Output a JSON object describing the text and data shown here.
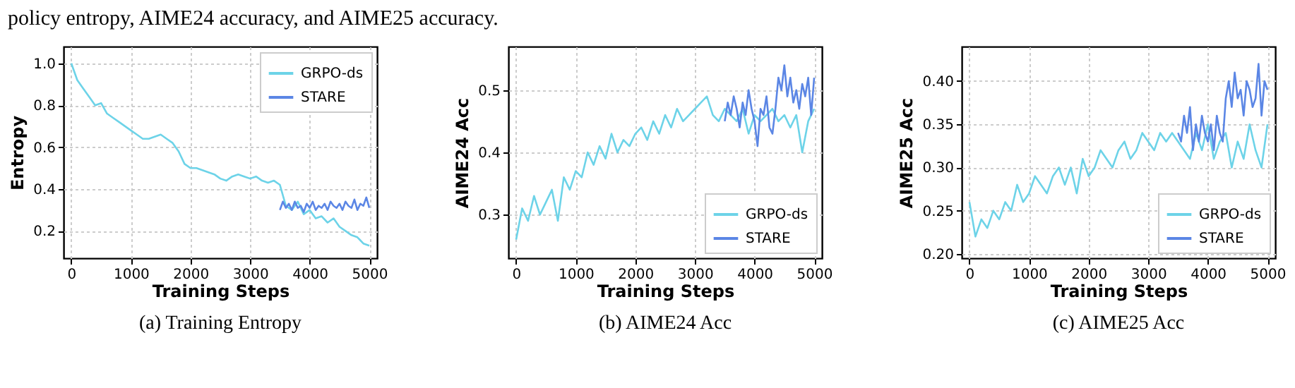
{
  "chart_data": [
    {
      "type": "line",
      "title": "(a) Training Entropy",
      "annotations": [
        "policy entropy, AIME24 accuracy, and AIME25 accuracy."
      ],
      "xlabel": "Training Steps",
      "ylabel": "Entropy",
      "xlim": [
        -130,
        5130
      ],
      "xticks": [
        0,
        1000,
        2000,
        3000,
        4000,
        5000
      ],
      "ylim": [
        0.07,
        1.08
      ],
      "yticks": [
        0.2,
        0.4,
        0.6,
        0.8,
        {
          "value": 1,
          "label": "1.0"
        }
      ],
      "grid": true,
      "legend": "top right",
      "marker": "none",
      "line_style": "solid",
      "series": [
        {
          "name": "GRPO-ds",
          "color": "#6dd3e8",
          "x": [
            0,
            100,
            200,
            300,
            400,
            500,
            600,
            700,
            800,
            900,
            1000,
            1100,
            1200,
            1300,
            1400,
            1500,
            1600,
            1700,
            1800,
            1900,
            2000,
            2100,
            2200,
            2300,
            2400,
            2500,
            2600,
            2700,
            2800,
            2900,
            3000,
            3100,
            3200,
            3300,
            3400,
            3500,
            3600,
            3700,
            3800,
            3900,
            4000,
            4100,
            4200,
            4300,
            4400,
            4500,
            4600,
            4700,
            4800,
            4900,
            5000
          ],
          "values": [
            1.0,
            0.92,
            0.88,
            0.84,
            0.8,
            0.81,
            0.76,
            0.74,
            0.72,
            0.7,
            0.68,
            0.66,
            0.64,
            0.64,
            0.65,
            0.66,
            0.64,
            0.62,
            0.58,
            0.52,
            0.5,
            0.5,
            0.49,
            0.48,
            0.47,
            0.45,
            0.44,
            0.46,
            0.47,
            0.46,
            0.45,
            0.46,
            0.44,
            0.43,
            0.44,
            0.42,
            0.32,
            0.3,
            0.34,
            0.28,
            0.3,
            0.26,
            0.27,
            0.24,
            0.26,
            0.22,
            0.2,
            0.18,
            0.17,
            0.14,
            0.13
          ]
        },
        {
          "name": "STARE",
          "color": "#5b86e5",
          "x": [
            3500,
            3550,
            3600,
            3650,
            3700,
            3750,
            3800,
            3850,
            3900,
            3950,
            4000,
            4050,
            4100,
            4150,
            4200,
            4250,
            4300,
            4350,
            4400,
            4450,
            4500,
            4550,
            4600,
            4650,
            4700,
            4750,
            4800,
            4850,
            4900,
            4950,
            5000
          ],
          "values": [
            0.3,
            0.34,
            0.31,
            0.33,
            0.3,
            0.34,
            0.31,
            0.32,
            0.29,
            0.33,
            0.31,
            0.34,
            0.3,
            0.32,
            0.31,
            0.33,
            0.3,
            0.34,
            0.32,
            0.31,
            0.33,
            0.3,
            0.34,
            0.32,
            0.31,
            0.35,
            0.3,
            0.33,
            0.32,
            0.36,
            0.31
          ]
        }
      ]
    },
    {
      "type": "line",
      "title": "(b) AIME24 Acc",
      "xlabel": "Training Steps",
      "ylabel": "AIME24 Acc",
      "xlim": [
        -130,
        5130
      ],
      "xticks": [
        0,
        1000,
        2000,
        3000,
        4000,
        5000
      ],
      "ylim": [
        0.23,
        0.57
      ],
      "yticks": [
        0.3,
        0.4,
        0.5
      ],
      "grid": true,
      "legend": "bottom right",
      "marker": "none",
      "line_style": "solid",
      "series": [
        {
          "name": "GRPO-ds",
          "color": "#6dd3e8",
          "x": [
            0,
            100,
            200,
            300,
            400,
            500,
            600,
            700,
            800,
            900,
            1000,
            1100,
            1200,
            1300,
            1400,
            1500,
            1600,
            1700,
            1800,
            1900,
            2000,
            2100,
            2200,
            2300,
            2400,
            2500,
            2600,
            2700,
            2800,
            2900,
            3000,
            3100,
            3200,
            3300,
            3400,
            3500,
            3600,
            3700,
            3800,
            3900,
            4000,
            4100,
            4200,
            4300,
            4400,
            4500,
            4600,
            4700,
            4800,
            4900,
            5000
          ],
          "values": [
            0.26,
            0.31,
            0.29,
            0.33,
            0.3,
            0.32,
            0.34,
            0.29,
            0.36,
            0.34,
            0.37,
            0.36,
            0.4,
            0.38,
            0.41,
            0.39,
            0.43,
            0.4,
            0.42,
            0.41,
            0.43,
            0.44,
            0.42,
            0.45,
            0.43,
            0.46,
            0.44,
            0.47,
            0.45,
            0.46,
            0.47,
            0.48,
            0.49,
            0.46,
            0.45,
            0.47,
            0.46,
            0.45,
            0.47,
            0.43,
            0.46,
            0.45,
            0.46,
            0.47,
            0.45,
            0.46,
            0.44,
            0.46,
            0.4,
            0.45,
            0.47
          ]
        },
        {
          "name": "STARE",
          "color": "#5b86e5",
          "x": [
            3500,
            3550,
            3600,
            3650,
            3700,
            3750,
            3800,
            3850,
            3900,
            3950,
            4000,
            4050,
            4100,
            4150,
            4200,
            4250,
            4300,
            4350,
            4400,
            4450,
            4500,
            4550,
            4600,
            4650,
            4700,
            4750,
            4800,
            4850,
            4900,
            4950,
            5000
          ],
          "values": [
            0.45,
            0.48,
            0.46,
            0.49,
            0.47,
            0.44,
            0.48,
            0.46,
            0.5,
            0.47,
            0.45,
            0.41,
            0.47,
            0.46,
            0.49,
            0.44,
            0.43,
            0.47,
            0.52,
            0.5,
            0.54,
            0.49,
            0.52,
            0.48,
            0.5,
            0.47,
            0.51,
            0.49,
            0.52,
            0.46,
            0.52
          ]
        }
      ]
    },
    {
      "type": "line",
      "title": "(c) AIME25 Acc",
      "xlabel": "Training Steps",
      "ylabel": "AIME25 Acc",
      "xlim": [
        -130,
        5130
      ],
      "xticks": [
        0,
        1000,
        2000,
        3000,
        4000,
        5000
      ],
      "ylim": [
        0.195,
        0.44
      ],
      "yticks": [
        {
          "value": 0.2,
          "label": "0.20"
        },
        0.25,
        {
          "value": 0.3,
          "label": "0.30"
        },
        0.35,
        {
          "value": 0.4,
          "label": "0.40"
        }
      ],
      "grid": true,
      "legend": "bottom right",
      "marker": "none",
      "line_style": "solid",
      "series": [
        {
          "name": "GRPO-ds",
          "color": "#6dd3e8",
          "x": [
            0,
            100,
            200,
            300,
            400,
            500,
            600,
            700,
            800,
            900,
            1000,
            1100,
            1200,
            1300,
            1400,
            1500,
            1600,
            1700,
            1800,
            1900,
            2000,
            2100,
            2200,
            2300,
            2400,
            2500,
            2600,
            2700,
            2800,
            2900,
            3000,
            3100,
            3200,
            3300,
            3400,
            3500,
            3600,
            3700,
            3800,
            3900,
            4000,
            4100,
            4200,
            4300,
            4400,
            4500,
            4600,
            4700,
            4800,
            4900,
            5000
          ],
          "values": [
            0.26,
            0.22,
            0.24,
            0.23,
            0.25,
            0.24,
            0.26,
            0.25,
            0.28,
            0.26,
            0.27,
            0.29,
            0.28,
            0.27,
            0.29,
            0.3,
            0.28,
            0.3,
            0.27,
            0.31,
            0.29,
            0.3,
            0.32,
            0.31,
            0.3,
            0.32,
            0.33,
            0.31,
            0.32,
            0.34,
            0.33,
            0.32,
            0.34,
            0.33,
            0.34,
            0.33,
            0.32,
            0.31,
            0.34,
            0.32,
            0.35,
            0.31,
            0.33,
            0.34,
            0.3,
            0.33,
            0.31,
            0.35,
            0.32,
            0.3,
            0.35
          ]
        },
        {
          "name": "STARE",
          "color": "#5b86e5",
          "x": [
            3500,
            3550,
            3600,
            3650,
            3700,
            3750,
            3800,
            3850,
            3900,
            3950,
            4000,
            4050,
            4100,
            4150,
            4200,
            4250,
            4300,
            4350,
            4400,
            4450,
            4500,
            4550,
            4600,
            4650,
            4700,
            4750,
            4800,
            4850,
            4900,
            4950,
            5000
          ],
          "values": [
            0.34,
            0.33,
            0.36,
            0.34,
            0.37,
            0.32,
            0.35,
            0.33,
            0.36,
            0.34,
            0.33,
            0.35,
            0.32,
            0.36,
            0.34,
            0.33,
            0.38,
            0.4,
            0.37,
            0.41,
            0.38,
            0.39,
            0.36,
            0.4,
            0.39,
            0.37,
            0.38,
            0.42,
            0.36,
            0.4,
            0.39
          ]
        }
      ]
    }
  ]
}
